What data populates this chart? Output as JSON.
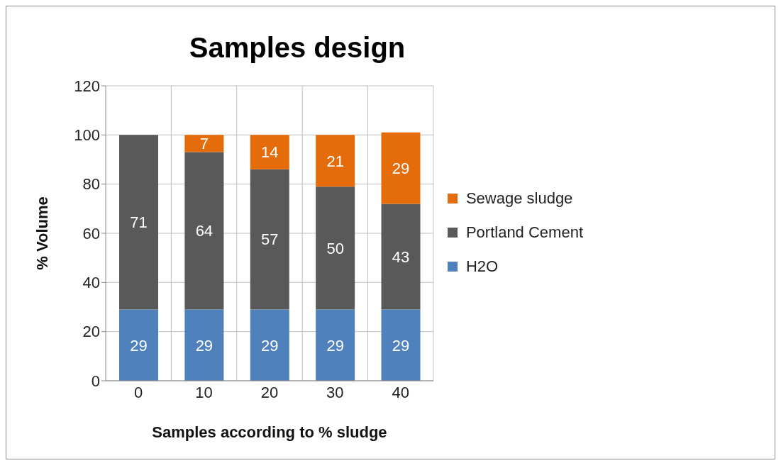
{
  "chart_data": {
    "type": "bar",
    "title": "Samples design",
    "xlabel": "Samples according to % sludge",
    "ylabel": "% Volume",
    "categories": [
      "0",
      "10",
      "20",
      "30",
      "40"
    ],
    "series": [
      {
        "name": "H2O",
        "color": "#4f81bd",
        "values": [
          29,
          29,
          29,
          29,
          29
        ]
      },
      {
        "name": "Portland Cement",
        "color": "#595959",
        "values": [
          71,
          64,
          57,
          50,
          43
        ]
      },
      {
        "name": "Sewage sludge",
        "color": "#e46c0a",
        "values": [
          null,
          7,
          14,
          21,
          29
        ]
      }
    ],
    "stacked": true,
    "data_labels": true,
    "ylim": [
      0,
      120
    ],
    "yticks": [
      0,
      20,
      40,
      60,
      80,
      100,
      120
    ],
    "grid": true,
    "legend": "right"
  }
}
